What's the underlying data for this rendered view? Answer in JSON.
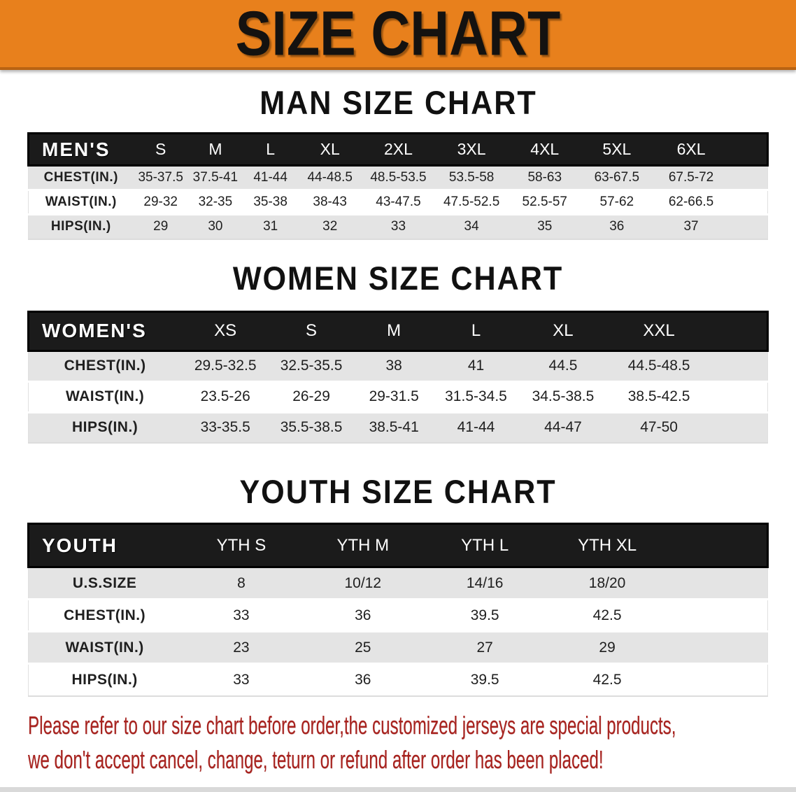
{
  "banner": {
    "title": "SIZE CHART",
    "bg_color": "#e8801c",
    "text_color": "#141210"
  },
  "colors": {
    "header_bar": "#1b1b1b",
    "row_gray": "#e4e4e4",
    "row_white": "#ffffff",
    "footer_red": "#a8231f"
  },
  "sections": [
    {
      "id": "men",
      "heading": "MAN SIZE CHART",
      "table": {
        "header": {
          "label": "MEN'S",
          "sizes": [
            "S",
            "M",
            "L",
            "XL",
            "2XL",
            "3XL",
            "4XL",
            "5XL",
            "6XL"
          ]
        },
        "rows": [
          {
            "label": "CHEST(IN.)",
            "values": [
              "35-37.5",
              "37.5-41",
              "41-44",
              "44-48.5",
              "48.5-53.5",
              "53.5-58",
              "58-63",
              "63-67.5",
              "67.5-72"
            ]
          },
          {
            "label": "WAIST(IN.)",
            "values": [
              "29-32",
              "32-35",
              "35-38",
              "38-43",
              "43-47.5",
              "47.5-52.5",
              "52.5-57",
              "57-62",
              "62-66.5"
            ]
          },
          {
            "label": "HIPS(IN.)",
            "values": [
              "29",
              "30",
              "31",
              "32",
              "33",
              "34",
              "35",
              "36",
              "37"
            ]
          }
        ]
      }
    },
    {
      "id": "women",
      "heading": "WOMEN SIZE CHART",
      "table": {
        "header": {
          "label": "WOMEN'S",
          "sizes": [
            "XS",
            "S",
            "M",
            "L",
            "XL",
            "XXL"
          ]
        },
        "rows": [
          {
            "label": "CHEST(IN.)",
            "values": [
              "29.5-32.5",
              "32.5-35.5",
              "38",
              "41",
              "44.5",
              "44.5-48.5"
            ]
          },
          {
            "label": "WAIST(IN.)",
            "values": [
              "23.5-26",
              "26-29",
              "29-31.5",
              "31.5-34.5",
              "34.5-38.5",
              "38.5-42.5"
            ]
          },
          {
            "label": "HIPS(IN.)",
            "values": [
              "33-35.5",
              "35.5-38.5",
              "38.5-41",
              "41-44",
              "44-47",
              "47-50"
            ]
          }
        ]
      }
    },
    {
      "id": "youth",
      "heading": "YOUTH SIZE CHART",
      "table": {
        "header": {
          "label": "YOUTH",
          "sizes": [
            "YTH S",
            "YTH M",
            "YTH L",
            "YTH XL"
          ]
        },
        "rows": [
          {
            "label": "U.S.SIZE",
            "values": [
              "8",
              "10/12",
              "14/16",
              "18/20"
            ]
          },
          {
            "label": "CHEST(IN.)",
            "values": [
              "33",
              "36",
              "39.5",
              "42.5"
            ]
          },
          {
            "label": "WAIST(IN.)",
            "values": [
              "23",
              "25",
              "27",
              "29"
            ]
          },
          {
            "label": "HIPS(IN.)",
            "values": [
              "33",
              "36",
              "39.5",
              "42.5"
            ]
          }
        ]
      }
    }
  ],
  "footer": {
    "line1": "Please refer to our size chart before order,the customized jerseys are special products,",
    "line2": "we don't accept cancel, change, teturn or refund after order has been placed!"
  }
}
